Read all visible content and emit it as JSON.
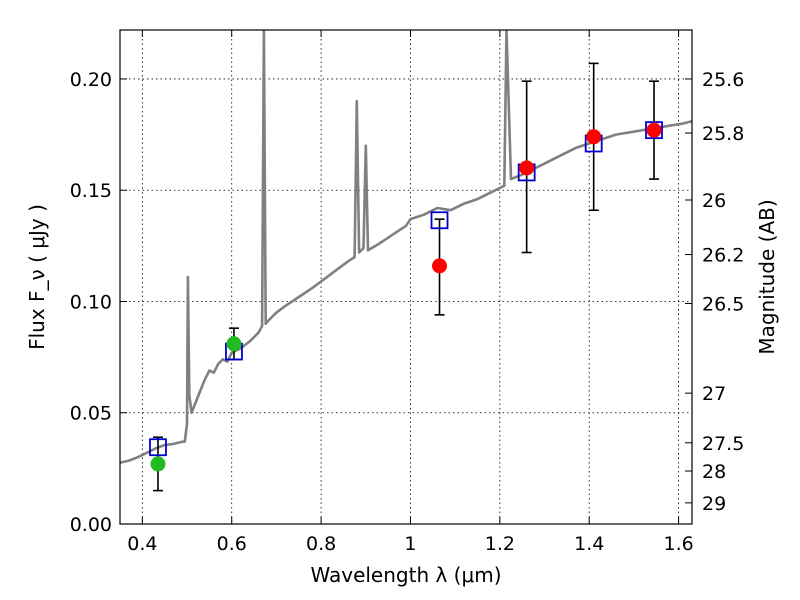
{
  "chart_data": {
    "type": "scatter",
    "xlabel": "Wavelength  λ (μm)",
    "ylabel": "Flux  F_ν  ( μJy )",
    "ylabel2": "Magnitude (AB)",
    "xlim": [
      0.35,
      1.63
    ],
    "ylim": [
      0.0,
      0.222
    ],
    "grid": true,
    "x_ticks": [
      0.4,
      0.6,
      0.8,
      1.0,
      1.2,
      1.4,
      1.6
    ],
    "x_tick_labels": [
      "0.4",
      "0.6",
      "0.8",
      "1",
      "1.2",
      "1.4",
      "1.6"
    ],
    "y_ticks": [
      0.0,
      0.05,
      0.1,
      0.15,
      0.2
    ],
    "y_tick_labels": [
      "0.00",
      "0.05",
      "0.10",
      "0.15",
      "0.20"
    ],
    "right_ticks": [
      {
        "label": "25.6",
        "flux": 0.2
      },
      {
        "label": "25.8",
        "flux": 0.1757
      },
      {
        "label": "26",
        "flux": 0.1456
      },
      {
        "label": "26.2",
        "flux": 0.1211
      },
      {
        "label": "26.5",
        "flux": 0.0991
      },
      {
        "label": "27",
        "flux": 0.0588
      },
      {
        "label": "27.5",
        "flux": 0.0365
      },
      {
        "label": "28",
        "flux": 0.0238
      },
      {
        "label": "29",
        "flux": 0.0095
      }
    ],
    "series": [
      {
        "kind": "spectrum",
        "color": "#808080",
        "points": [
          [
            0.35,
            0.0275
          ],
          [
            0.37,
            0.0285
          ],
          [
            0.39,
            0.03
          ],
          [
            0.41,
            0.032
          ],
          [
            0.43,
            0.034
          ],
          [
            0.45,
            0.0355
          ],
          [
            0.47,
            0.036
          ],
          [
            0.49,
            0.037
          ],
          [
            0.495,
            0.037
          ],
          [
            0.5,
            0.045
          ],
          [
            0.502,
            0.111
          ],
          [
            0.505,
            0.058
          ],
          [
            0.51,
            0.05
          ],
          [
            0.52,
            0.055
          ],
          [
            0.53,
            0.06
          ],
          [
            0.54,
            0.065
          ],
          [
            0.55,
            0.069
          ],
          [
            0.56,
            0.068
          ],
          [
            0.57,
            0.072
          ],
          [
            0.58,
            0.074
          ],
          [
            0.59,
            0.073
          ],
          [
            0.6,
            0.077
          ],
          [
            0.62,
            0.079
          ],
          [
            0.64,
            0.082
          ],
          [
            0.66,
            0.086
          ],
          [
            0.668,
            0.089
          ],
          [
            0.672,
            0.222
          ],
          [
            0.676,
            0.09
          ],
          [
            0.68,
            0.091
          ],
          [
            0.7,
            0.095
          ],
          [
            0.72,
            0.098
          ],
          [
            0.75,
            0.102
          ],
          [
            0.78,
            0.106
          ],
          [
            0.8,
            0.109
          ],
          [
            0.82,
            0.112
          ],
          [
            0.84,
            0.115
          ],
          [
            0.86,
            0.118
          ],
          [
            0.875,
            0.12
          ],
          [
            0.88,
            0.19
          ],
          [
            0.885,
            0.122
          ],
          [
            0.895,
            0.124
          ],
          [
            0.9,
            0.17
          ],
          [
            0.905,
            0.123
          ],
          [
            0.93,
            0.126
          ],
          [
            0.96,
            0.13
          ],
          [
            0.99,
            0.134
          ],
          [
            1.0,
            0.137
          ],
          [
            1.03,
            0.139
          ],
          [
            1.06,
            0.142
          ],
          [
            1.09,
            0.141
          ],
          [
            1.12,
            0.144
          ],
          [
            1.15,
            0.146
          ],
          [
            1.18,
            0.149
          ],
          [
            1.21,
            0.152
          ],
          [
            1.215,
            0.222
          ],
          [
            1.225,
            0.155
          ],
          [
            1.25,
            0.157
          ],
          [
            1.28,
            0.16
          ],
          [
            1.31,
            0.163
          ],
          [
            1.34,
            0.166
          ],
          [
            1.37,
            0.169
          ],
          [
            1.4,
            0.171
          ],
          [
            1.43,
            0.173
          ],
          [
            1.46,
            0.175
          ],
          [
            1.49,
            0.176
          ],
          [
            1.52,
            0.177
          ],
          [
            1.55,
            0.178
          ],
          [
            1.58,
            0.179
          ],
          [
            1.61,
            0.18
          ],
          [
            1.63,
            0.181
          ]
        ]
      },
      {
        "kind": "model-squares",
        "color": "#0000cc",
        "points": [
          [
            0.435,
            0.0345
          ],
          [
            0.605,
            0.0775
          ],
          [
            1.065,
            0.1365
          ],
          [
            1.26,
            0.158
          ],
          [
            1.41,
            0.171
          ],
          [
            1.545,
            0.177
          ]
        ]
      },
      {
        "kind": "observed-green",
        "color": "#22bb22",
        "points": [
          {
            "x": 0.435,
            "y": 0.027,
            "err_low": 0.015,
            "err_high": 0.039
          },
          {
            "x": 0.605,
            "y": 0.081,
            "err_low": 0.074,
            "err_high": 0.088
          }
        ]
      },
      {
        "kind": "observed-red",
        "color": "#ff0000",
        "points": [
          {
            "x": 1.065,
            "y": 0.116,
            "err_low": 0.094,
            "err_high": 0.137
          },
          {
            "x": 1.26,
            "y": 0.16,
            "err_low": 0.122,
            "err_high": 0.199
          },
          {
            "x": 1.41,
            "y": 0.174,
            "err_low": 0.141,
            "err_high": 0.207
          },
          {
            "x": 1.545,
            "y": 0.177,
            "err_low": 0.155,
            "err_high": 0.199
          }
        ]
      }
    ]
  }
}
